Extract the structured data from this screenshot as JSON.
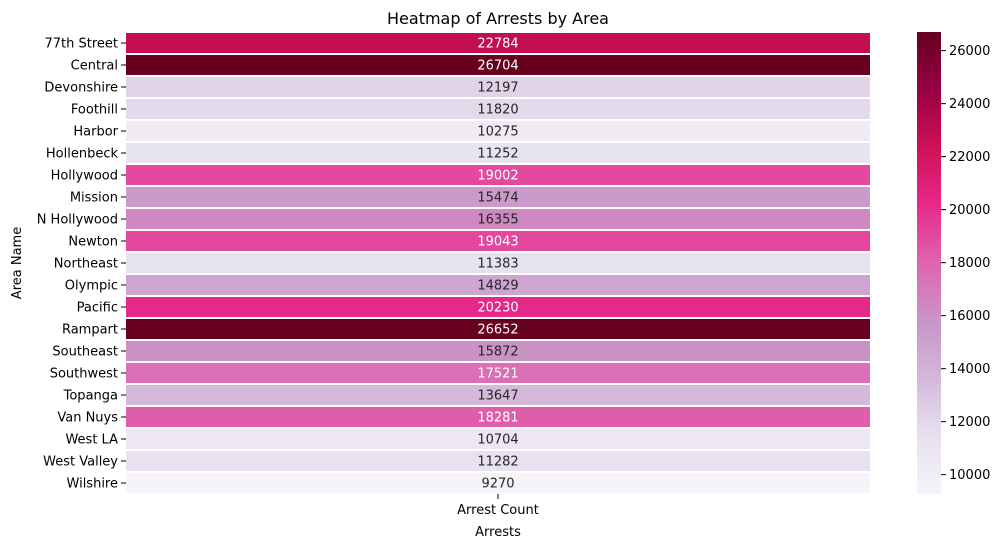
{
  "chart_data": {
    "type": "heatmap",
    "title": "Heatmap of Arrests by Area",
    "xlabel": "Arrests",
    "ylabel": "Area Name",
    "columns": [
      "Arrest Count"
    ],
    "rows": [
      "77th Street",
      "Central",
      "Devonshire",
      "Foothill",
      "Harbor",
      "Hollenbeck",
      "Hollywood",
      "Mission",
      "N Hollywood",
      "Newton",
      "Northeast",
      "Olympic",
      "Pacific",
      "Rampart",
      "Southeast",
      "Southwest",
      "Topanga",
      "Van Nuys",
      "West LA",
      "West Valley",
      "Wilshire"
    ],
    "values": [
      22784,
      26704,
      12197,
      11820,
      10275,
      11252,
      19002,
      15474,
      16355,
      19043,
      11383,
      14829,
      20230,
      26652,
      15872,
      17521,
      13647,
      18281,
      10704,
      11282,
      9270
    ],
    "colorbar": {
      "min": 9270,
      "max": 26704,
      "ticks": [
        10000,
        12000,
        14000,
        16000,
        18000,
        20000,
        22000,
        24000,
        26000
      ],
      "colormap": "PuRd",
      "stops": [
        "#f7f4f9",
        "#e7e1ef",
        "#d4b9da",
        "#c994c7",
        "#df65b0",
        "#e7298a",
        "#ce1256",
        "#980043",
        "#67001f"
      ]
    },
    "annotations": true,
    "grid": false
  }
}
